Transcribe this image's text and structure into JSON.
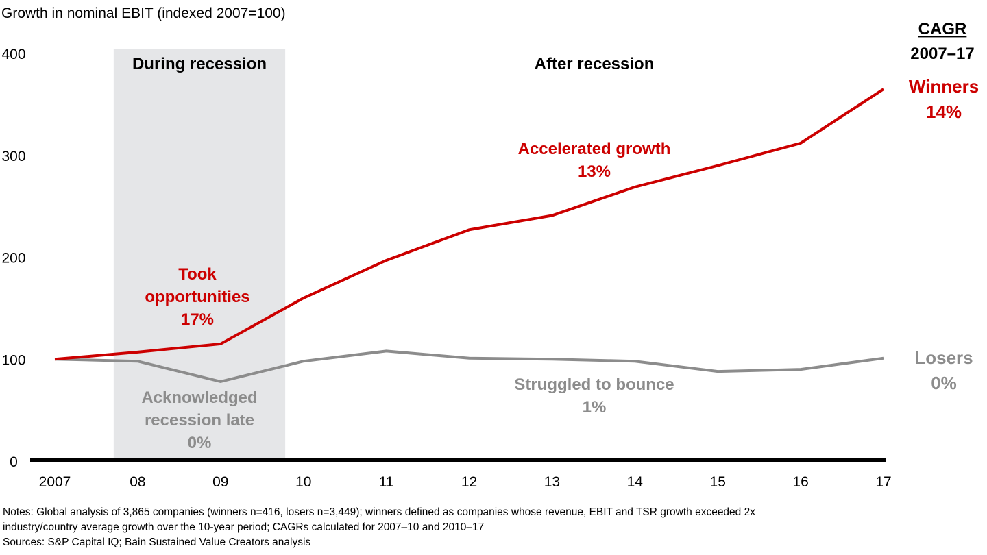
{
  "chart_data": {
    "type": "line",
    "title": "Growth in nominal EBIT (indexed 2007=100)",
    "x": [
      2007,
      2008,
      2009,
      2010,
      2011,
      2012,
      2013,
      2014,
      2015,
      2016,
      2017
    ],
    "xtick_labels": [
      "2007",
      "08",
      "09",
      "10",
      "11",
      "12",
      "13",
      "14",
      "15",
      "16",
      "17"
    ],
    "yticks": [
      0,
      100,
      200,
      300,
      400
    ],
    "ylim": [
      0,
      400
    ],
    "grid": false,
    "series": [
      {
        "name": "Winners",
        "cagr": "14%",
        "color": "#cc0000",
        "values": [
          100,
          107,
          115,
          160,
          197,
          227,
          241,
          269,
          290,
          312,
          365
        ]
      },
      {
        "name": "Losers",
        "cagr": "0%",
        "color": "#8c8c8c",
        "values": [
          100,
          98,
          78,
          98,
          108,
          101,
          100,
          98,
          88,
          90,
          101
        ]
      }
    ],
    "shaded_region": {
      "label": "During recession",
      "x": [
        2007.71,
        2009.78
      ],
      "color": "#e5e6e8"
    },
    "region_label_after": "After recession",
    "cagr_header": [
      "CAGR",
      "2007–17"
    ],
    "annotations": {
      "winners_during": [
        "Took",
        "opportunities",
        "17%"
      ],
      "winners_after": [
        "Accelerated growth",
        "13%"
      ],
      "losers_during": [
        "Acknowledged",
        "recession late",
        "0%"
      ],
      "losers_after": [
        "Struggled to bounce",
        "1%"
      ]
    }
  },
  "notes": {
    "line1": "Notes: Global analysis of 3,865 companies (winners n=416, losers n=3,449); winners defined as companies whose revenue, EBIT and TSR growth exceeded 2x",
    "line2": "industry/country average growth over the 10-year period; CAGRs calculated for 2007–10 and 2010–17",
    "sources": "Sources: S&P Capital IQ; Bain Sustained Value Creators analysis"
  }
}
